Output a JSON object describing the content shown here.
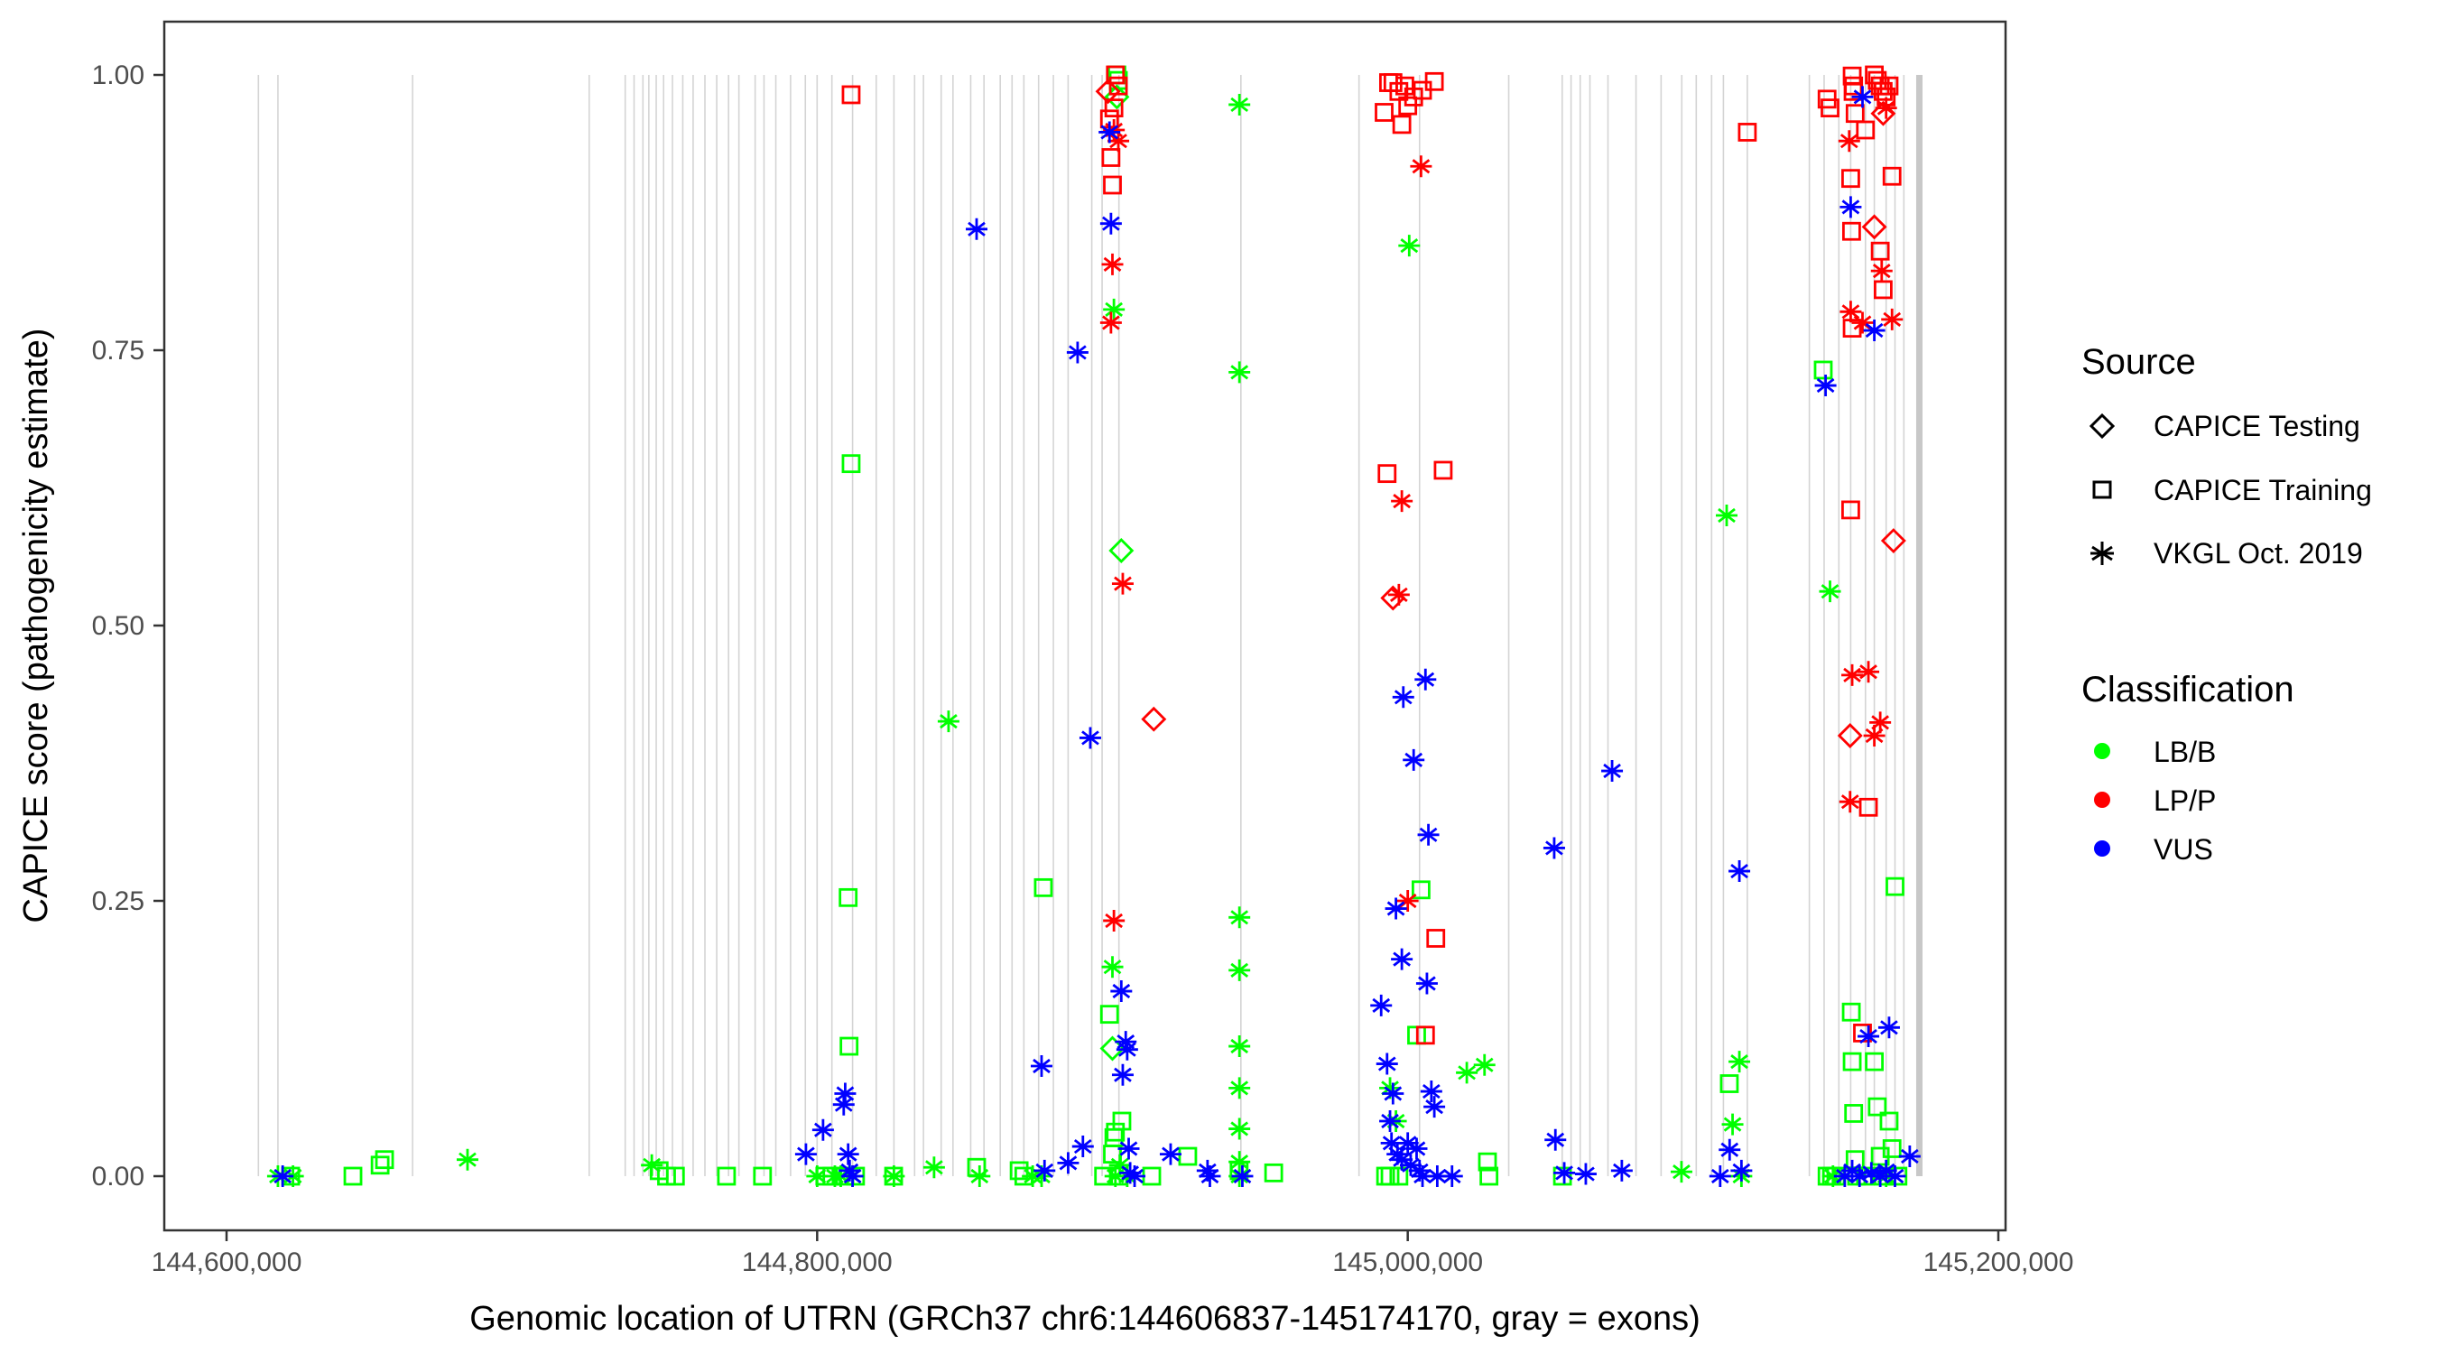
{
  "chart_data": {
    "type": "scatter",
    "title": "",
    "xlabel": "Genomic location of UTRN (GRCh37 chr6:144606837-145174170, gray = exons)",
    "ylabel": "CAPICE score (pathogenicity estimate)",
    "xlim": [
      144585000,
      145202000
    ],
    "ylim": [
      -0.05,
      1.05
    ],
    "x_ticks": [
      144600000,
      144800000,
      145000000,
      145200000
    ],
    "x_tick_labels": [
      "144,600,000",
      "144,800,000",
      "145,000,000",
      "145,200,000"
    ],
    "y_ticks": [
      0,
      0.25,
      0.5,
      0.75,
      1.0
    ],
    "y_tick_labels": [
      "0.00",
      "0.25",
      "0.50",
      "0.75",
      "1.00"
    ],
    "grid": false,
    "exons": [
      144610800,
      144617400,
      144663000,
      144722800,
      144735000,
      144738000,
      144741000,
      144743000,
      144745500,
      144748000,
      144751000,
      144754500,
      144758000,
      144762000,
      144766000,
      144770000,
      144773500,
      144779000,
      144782000,
      144786000,
      144791000,
      144796000,
      144800000,
      144805000,
      144812000,
      144820000,
      144826000,
      144833000,
      144836000,
      144842000,
      144846000,
      144852000,
      144856500,
      144862000,
      144866000,
      144870000,
      144875000,
      144880000,
      144885000,
      144893000,
      144896500,
      144902200,
      144943500,
      144983500,
      145004000,
      145034200,
      145052300,
      145055300,
      145058400,
      145061700,
      145067800,
      145077300,
      145085800,
      145092800,
      145097700,
      145102900,
      145106900,
      145115000,
      145136000,
      145141000,
      145146000,
      145150000,
      145155000,
      145158000,
      145162000,
      145165000,
      145168000
    ],
    "thick_exon": 145173100,
    "legend": {
      "position": "right",
      "source_title": "Source",
      "source_entries": [
        {
          "label": "CAPICE Testing",
          "shape": "diamond"
        },
        {
          "label": "CAPICE Training",
          "shape": "square"
        },
        {
          "label": "VKGL Oct. 2019",
          "shape": "asterisk"
        }
      ],
      "class_title": "Classification",
      "class_entries": [
        {
          "label": "LB/B",
          "color": "#00ff00"
        },
        {
          "label": "LP/P",
          "color": "#ff0000"
        },
        {
          "label": "VUS",
          "color": "#0000ff"
        }
      ]
    },
    "colors": {
      "LB/B": "#00ff00",
      "LP/P": "#ff0000",
      "VUS": "#0000ff"
    },
    "series": [
      {
        "name": "LB/B",
        "source": "CAPICE Training",
        "points": [
          [
            144621700,
            0.0
          ],
          [
            144642800,
            0.0
          ],
          [
            144652000,
            0.01
          ],
          [
            144653500,
            0.015
          ],
          [
            144746500,
            0.005
          ],
          [
            144749000,
            0.0
          ],
          [
            144752000,
            0.0
          ],
          [
            144769300,
            0.0
          ],
          [
            144781500,
            0.0
          ],
          [
            144802600,
            0.0
          ],
          [
            144805000,
            0.0
          ],
          [
            144809400,
            0.0
          ],
          [
            144810500,
            0.253
          ],
          [
            144810800,
            0.118
          ],
          [
            144811500,
            0.647
          ],
          [
            144813000,
            0.0
          ],
          [
            144825900,
            0.0
          ],
          [
            144854000,
            0.008
          ],
          [
            144868400,
            0.005
          ],
          [
            144870000,
            0.0
          ],
          [
            144876600,
            0.262
          ],
          [
            144897000,
            0.0
          ],
          [
            144899000,
            0.147
          ],
          [
            144900000,
            0.02
          ],
          [
            144900500,
            0.035
          ],
          [
            144901000,
            0.04
          ],
          [
            144902000,
            0.0
          ],
          [
            144903200,
            0.05
          ],
          [
            144901500,
            1.0
          ],
          [
            144902000,
            0.995
          ],
          [
            144913300,
            0.0
          ],
          [
            144925500,
            0.018
          ],
          [
            144942900,
            0.005
          ],
          [
            144954600,
            0.003
          ],
          [
            144992500,
            0.0
          ],
          [
            144994000,
            0.0
          ],
          [
            144997000,
            0.0
          ],
          [
            145003000,
            0.128
          ],
          [
            145004500,
            0.26
          ],
          [
            145027000,
            0.013
          ],
          [
            145027500,
            0.0
          ],
          [
            145052400,
            0.0
          ],
          [
            145108900,
            0.084
          ],
          [
            145140700,
            0.732
          ],
          [
            145142000,
            0.0
          ],
          [
            145143500,
            0.0
          ],
          [
            145145000,
            0.0
          ],
          [
            145150200,
            0.149
          ],
          [
            145150500,
            0.104
          ],
          [
            145151000,
            0.057
          ],
          [
            145151500,
            0.015
          ],
          [
            145152000,
            0.0
          ],
          [
            145155000,
            0.0
          ],
          [
            145158000,
            0.104
          ],
          [
            145159000,
            0.063
          ],
          [
            145160000,
            0.018
          ],
          [
            145161000,
            0.0
          ],
          [
            145163000,
            0.05
          ],
          [
            145164000,
            0.025
          ],
          [
            145165000,
            0.263
          ],
          [
            145166000,
            0.0
          ]
        ]
      },
      {
        "name": "LB/B",
        "source": "VKGL Oct. 2019",
        "points": [
          [
            144617400,
            0.0
          ],
          [
            144622500,
            0.0
          ],
          [
            144681600,
            0.015
          ],
          [
            144744000,
            0.01
          ],
          [
            144800000,
            0.0
          ],
          [
            144806000,
            0.0
          ],
          [
            144808000,
            0.0
          ],
          [
            144812000,
            0.0
          ],
          [
            144826000,
            0.0
          ],
          [
            144839600,
            0.008
          ],
          [
            144844500,
            0.413
          ],
          [
            144855000,
            0.0
          ],
          [
            144873000,
            0.0
          ],
          [
            144876000,
            0.0
          ],
          [
            144900000,
            0.19
          ],
          [
            144900500,
            0.787
          ],
          [
            144901000,
            0.0
          ],
          [
            144902500,
            0.01
          ],
          [
            144905000,
            0.0
          ],
          [
            144943000,
            0.973
          ],
          [
            144943000,
            0.73
          ],
          [
            144943000,
            0.235
          ],
          [
            144943000,
            0.187
          ],
          [
            144943000,
            0.118
          ],
          [
            144943000,
            0.08
          ],
          [
            144943000,
            0.043
          ],
          [
            144943000,
            0.013
          ],
          [
            144943000,
            0.0
          ],
          [
            144994000,
            0.08
          ],
          [
            144996000,
            0.05
          ],
          [
            145000500,
            0.845
          ],
          [
            145020000,
            0.094
          ],
          [
            145026000,
            0.101
          ],
          [
            145092700,
            0.004
          ],
          [
            145108000,
            0.6
          ],
          [
            145110000,
            0.047
          ],
          [
            145112300,
            0.104
          ],
          [
            145113000,
            0.0
          ],
          [
            145143000,
            0.531
          ],
          [
            145144000,
            0.0
          ],
          [
            145162000,
            0.0
          ]
        ]
      },
      {
        "name": "LB/B",
        "source": "CAPICE Testing",
        "points": [
          [
            144900000,
            0.116
          ],
          [
            144903000,
            0.568
          ],
          [
            144901500,
            0.98
          ]
        ]
      },
      {
        "name": "LP/P",
        "source": "CAPICE Training",
        "points": [
          [
            144811500,
            0.982
          ],
          [
            144899500,
            0.925
          ],
          [
            144900000,
            0.9
          ],
          [
            144901000,
            1.0
          ],
          [
            144902000,
            0.99
          ],
          [
            144900500,
            0.97
          ],
          [
            144899000,
            0.96
          ],
          [
            144992000,
            0.966
          ],
          [
            144993500,
            0.993
          ],
          [
            144995000,
            0.993
          ],
          [
            144997000,
            0.985
          ],
          [
            144998000,
            0.955
          ],
          [
            144999000,
            0.99
          ],
          [
            145000000,
            0.972
          ],
          [
            145002000,
            0.98
          ],
          [
            145005000,
            0.986
          ],
          [
            145009000,
            0.994
          ],
          [
            144993000,
            0.638
          ],
          [
            145012000,
            0.641
          ],
          [
            145009500,
            0.216
          ],
          [
            145006000,
            0.128
          ],
          [
            145115000,
            0.948
          ],
          [
            145142000,
            0.978
          ],
          [
            145143000,
            0.97
          ],
          [
            145150500,
            0.999
          ],
          [
            145151000,
            0.99
          ],
          [
            145150800,
            0.985
          ],
          [
            145151500,
            0.965
          ],
          [
            145150000,
            0.906
          ],
          [
            145150300,
            0.858
          ],
          [
            145150500,
            0.77
          ],
          [
            145150000,
            0.605
          ],
          [
            145155000,
            0.95
          ],
          [
            145156000,
            0.335
          ],
          [
            145154000,
            0.13
          ],
          [
            145158000,
            1.0
          ],
          [
            145159000,
            0.995
          ],
          [
            145160000,
            0.99
          ],
          [
            145161000,
            0.985
          ],
          [
            145162000,
            0.98
          ],
          [
            145160000,
            0.84
          ],
          [
            145161000,
            0.805
          ],
          [
            145163000,
            0.99
          ],
          [
            145164000,
            0.908
          ]
        ]
      },
      {
        "name": "LP/P",
        "source": "VKGL Oct. 2019",
        "points": [
          [
            144900000,
            0.828
          ],
          [
            144899500,
            0.775
          ],
          [
            144900500,
            0.95
          ],
          [
            144902000,
            0.94
          ],
          [
            144903500,
            0.538
          ],
          [
            144900500,
            0.232
          ],
          [
            144998000,
            0.613
          ],
          [
            144997000,
            0.528
          ],
          [
            145004500,
            0.917
          ],
          [
            145000000,
            0.25
          ],
          [
            145149500,
            0.94
          ],
          [
            145150000,
            0.785
          ],
          [
            145150500,
            0.455
          ],
          [
            145149800,
            0.34
          ],
          [
            145156000,
            0.458
          ],
          [
            145158000,
            0.4
          ],
          [
            145160000,
            0.412
          ],
          [
            145154000,
            0.775
          ],
          [
            145160500,
            0.822
          ],
          [
            145164000,
            0.778
          ],
          [
            145162000,
            0.97
          ]
        ]
      },
      {
        "name": "LP/P",
        "source": "CAPICE Testing",
        "points": [
          [
            144898500,
            0.985
          ],
          [
            144914000,
            0.415
          ],
          [
            144995000,
            0.525
          ],
          [
            145149800,
            0.4
          ],
          [
            145158000,
            0.862
          ],
          [
            145164500,
            0.577
          ],
          [
            145161000,
            0.965
          ]
        ]
      },
      {
        "name": "VUS",
        "source": "VKGL Oct. 2019",
        "points": [
          [
            144619000,
            0.0
          ],
          [
            144796200,
            0.02
          ],
          [
            144802000,
            0.042
          ],
          [
            144809000,
            0.065
          ],
          [
            144809500,
            0.075
          ],
          [
            144810500,
            0.02
          ],
          [
            144811000,
            0.005
          ],
          [
            144812000,
            0.0
          ],
          [
            144854000,
            0.86
          ],
          [
            144876000,
            0.1
          ],
          [
            144877000,
            0.005
          ],
          [
            144885000,
            0.012
          ],
          [
            144888200,
            0.748
          ],
          [
            144890000,
            0.027
          ],
          [
            144892500,
            0.398
          ],
          [
            144899000,
            0.948
          ],
          [
            144899500,
            0.865
          ],
          [
            144903000,
            0.168
          ],
          [
            144904500,
            0.122
          ],
          [
            144905000,
            0.115
          ],
          [
            144903500,
            0.092
          ],
          [
            144905500,
            0.025
          ],
          [
            144906000,
            0.003
          ],
          [
            144907500,
            0.0
          ],
          [
            144919700,
            0.02
          ],
          [
            144932200,
            0.005
          ],
          [
            144933000,
            0.0
          ],
          [
            144944000,
            0.0
          ],
          [
            144991000,
            0.155
          ],
          [
            144993000,
            0.102
          ],
          [
            144995000,
            0.075
          ],
          [
            144994000,
            0.05
          ],
          [
            144996000,
            0.243
          ],
          [
            144998000,
            0.197
          ],
          [
            144998500,
            0.435
          ],
          [
            145002000,
            0.378
          ],
          [
            145006000,
            0.451
          ],
          [
            145007000,
            0.31
          ],
          [
            145006500,
            0.175
          ],
          [
            145008000,
            0.077
          ],
          [
            145009000,
            0.063
          ],
          [
            144994500,
            0.03
          ],
          [
            144996500,
            0.02
          ],
          [
            144998000,
            0.015
          ],
          [
            145000000,
            0.03
          ],
          [
            145001000,
            0.01
          ],
          [
            145003000,
            0.025
          ],
          [
            145004000,
            0.005
          ],
          [
            145005000,
            0.0
          ],
          [
            145010000,
            0.0
          ],
          [
            145015000,
            0.0
          ],
          [
            145049600,
            0.298
          ],
          [
            145050000,
            0.033
          ],
          [
            145053000,
            0.003
          ],
          [
            145060300,
            0.002
          ],
          [
            145069200,
            0.368
          ],
          [
            145072500,
            0.005
          ],
          [
            145105800,
            0.0
          ],
          [
            145109000,
            0.024
          ],
          [
            145112300,
            0.277
          ],
          [
            145113000,
            0.005
          ],
          [
            145141500,
            0.718
          ],
          [
            145150000,
            0.88
          ],
          [
            145154000,
            0.98
          ],
          [
            145158000,
            0.768
          ],
          [
            145163000,
            0.135
          ],
          [
            145156000,
            0.127
          ],
          [
            145170000,
            0.018
          ],
          [
            145148000,
            0.0
          ],
          [
            145150500,
            0.005
          ],
          [
            145153000,
            0.0
          ],
          [
            145157000,
            0.003
          ],
          [
            145160000,
            0.0
          ],
          [
            145162000,
            0.005
          ],
          [
            145165000,
            0.0
          ]
        ]
      }
    ]
  }
}
